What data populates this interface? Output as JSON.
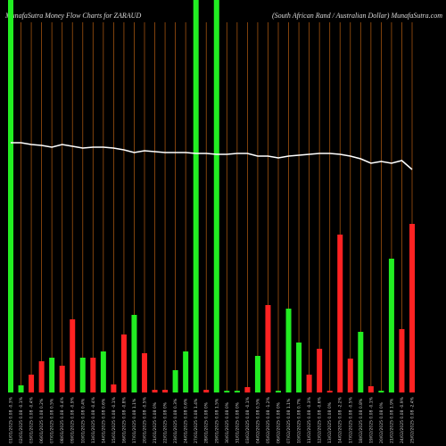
{
  "chart_data": {
    "type": "bar",
    "title": "MunafaSutra  Money Flow  Charts for ZARAUD",
    "subtitle": "(South African  Rand / Australian  Dollar) MunafaSutra.com",
    "categories": [
      "01/01/2025 0.08 -0.3%",
      "02/01/2025 0.08 -0.1%",
      "03/01/2025 0.08 -0.4%",
      "06/01/2025 0.08 0.2%",
      "07/01/2025 0.08 0.5%",
      "08/01/2025 0.08 -0.4%",
      "09/01/2025 0.08 -0.9%",
      "10/01/2025 0.08 0.4%",
      "13/01/2025 0.08 -0.4%",
      "14/01/2025 0.08 0.6%",
      "15/01/2025 0.08 -0.1%",
      "16/01/2025 0.08 -0.8%",
      "17/01/2025 0.08 1.1%",
      "20/01/2025 0.08 -0.5%",
      "21/01/2025 0.08 0%",
      "22/01/2025 0.08 0%",
      "23/01/2025 0.08 0.3%",
      "24/01/2025 0.08 0.6%",
      "27/01/2025 0.08 1.4%",
      "28/01/2025 0.08 0%",
      "29/01/2025 0.08 1.5%",
      "30/01/2025 0.08 0%",
      "31/01/2025 0.08 0%",
      "03/02/2025 0.08 -0.1%",
      "04/02/2025 0.08 0.5%",
      "05/02/2025 0.08 -1.2%",
      "06/02/2025 0.08 0%",
      "07/02/2025 0.08 1.1%",
      "10/02/2025 0.08 0.7%",
      "11/02/2025 0.08 -0.3%",
      "12/02/2025 0.08 -0.6%",
      "13/02/2025 0.08 0%",
      "14/02/2025 0.08 -2.2%",
      "17/02/2025 0.08 -0.5%",
      "18/02/2025 0.08 0.8%",
      "19/02/2025 0.08 -0.1%",
      "20/02/2025 0.08 0%",
      "21/02/2025 0.08 1.9%",
      "24/02/2025 0.08 -0.9%",
      "25/02/2025 0.08 -2.4%"
    ],
    "values": [
      440,
      8,
      20,
      35,
      39,
      30,
      82,
      39,
      39,
      46,
      9,
      65,
      87,
      44,
      3,
      3,
      25,
      46,
      440,
      3,
      440,
      2,
      2,
      6,
      41,
      98,
      2,
      94,
      56,
      20,
      49,
      2,
      177,
      38,
      68,
      7,
      2,
      150,
      71,
      189
    ],
    "bar_colors": [
      "#22ee22",
      "#22ee22",
      "#ff2222",
      "#ff2222",
      "#22ee22",
      "#ff2222",
      "#ff2222",
      "#22ee22",
      "#ff2222",
      "#22ee22",
      "#ff2222",
      "#ff2222",
      "#22ee22",
      "#ff2222",
      "#ff2222",
      "#ff2222",
      "#22ee22",
      "#22ee22",
      "#22ee22",
      "#ff2222",
      "#22ee22",
      "#22ee22",
      "#22ee22",
      "#ff2222",
      "#22ee22",
      "#ff2222",
      "#22ee22",
      "#22ee22",
      "#22ee22",
      "#ff2222",
      "#ff2222",
      "#ff2222",
      "#ff2222",
      "#ff2222",
      "#22ee22",
      "#ff2222",
      "#22ee22",
      "#22ee22",
      "#ff2222",
      "#ff2222"
    ],
    "line": {
      "color": "#ffffff",
      "values": [
        280,
        280,
        278,
        277,
        275,
        278,
        276,
        274,
        275,
        275,
        274,
        272,
        269,
        271,
        270,
        269,
        269,
        269,
        268,
        268,
        267,
        267,
        268,
        268,
        265,
        265,
        263,
        265,
        266,
        267,
        268,
        268,
        267,
        265,
        262,
        257,
        259,
        257,
        260,
        250
      ]
    },
    "ylim": [
      0,
      440
    ],
    "grid": true,
    "grid_color": "#a0520f"
  }
}
